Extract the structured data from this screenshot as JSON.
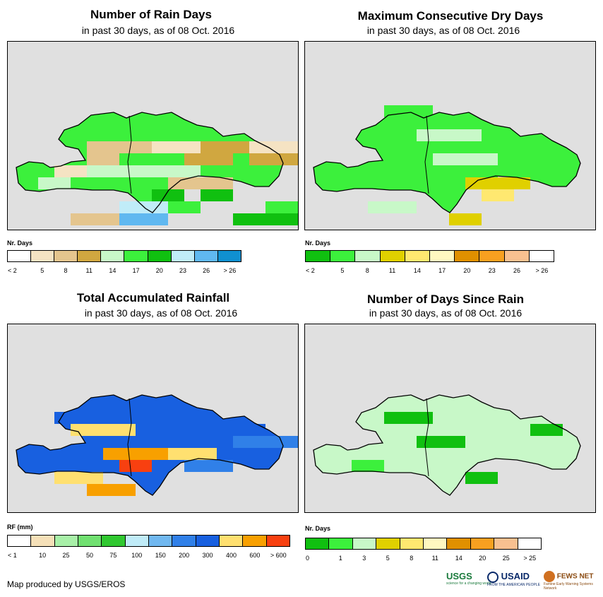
{
  "panels": {
    "rain_days": {
      "title": "Number of Rain Days",
      "subtitle": "in past 30 days, as of 08 Oct. 2016",
      "legend_title": "Nr. Days",
      "legend_labels": [
        "< 2",
        "5",
        "8",
        "11",
        "14",
        "17",
        "20",
        "23",
        "26",
        "> 26"
      ],
      "legend_colors": [
        "#ffffff",
        "#f5e3c3",
        "#e4c58e",
        "#d0a740",
        "#c8f8c8",
        "#3cf03c",
        "#10c010",
        "#c0ecf8",
        "#60b8f0",
        "#1090d0"
      ]
    },
    "dry_days": {
      "title": "Maximum Consecutive Dry Days",
      "subtitle": "in past 30 days, as of 08 Oct. 2016",
      "legend_title": "Nr. Days",
      "legend_labels": [
        "< 2",
        "5",
        "8",
        "11",
        "14",
        "17",
        "20",
        "23",
        "26",
        "> 26"
      ],
      "legend_colors": [
        "#10c010",
        "#3cf03c",
        "#c8f8c8",
        "#e0d000",
        "#ffe870",
        "#fff8c0",
        "#e09000",
        "#f8a020",
        "#f8c090",
        "#ffffff"
      ]
    },
    "rainfall": {
      "title": "Total Accumulated Rainfall",
      "subtitle": "in past 30 days, as of 08 Oct. 2016",
      "legend_title": "RF (mm)",
      "legend_labels": [
        "< 1",
        "10",
        "25",
        "50",
        "75",
        "100",
        "150",
        "200",
        "300",
        "400",
        "600",
        "> 600"
      ],
      "legend_colors": [
        "#ffffff",
        "#f5e0b8",
        "#a8f0a8",
        "#70e070",
        "#30c830",
        "#c0ecf8",
        "#70b8f0",
        "#3080e8",
        "#1860e0",
        "#ffe070",
        "#f8a000",
        "#f84010"
      ]
    },
    "days_since_rain": {
      "title": "Number of Days Since Rain",
      "subtitle": "in past 30 days, as of 08 Oct. 2016",
      "legend_title": "Nr. Days",
      "legend_labels": [
        "0",
        "1",
        "3",
        "5",
        "8",
        "11",
        "14",
        "20",
        "25",
        "> 25"
      ],
      "legend_colors": [
        "#10c010",
        "#3cf03c",
        "#c8f8c8",
        "#e0d000",
        "#ffe870",
        "#fff8c0",
        "#e09000",
        "#f8a020",
        "#f8c090",
        "#ffffff"
      ]
    }
  },
  "credit": "Map produced by USGS/EROS",
  "logos": {
    "usgs": "USGS",
    "usgs_tagline": "science for a changing world",
    "usaid": "USAID",
    "usaid_tagline": "FROM THE AMERICAN PEOPLE",
    "fews": "FEWS NET",
    "fews_tagline": "Famine Early Warning Systems Network"
  },
  "chart_data": [
    {
      "type": "heatmap",
      "title": "Number of Rain Days",
      "subtitle": "in past 30 days, as of 08 Oct. 2016",
      "legend_title": "Nr. Days",
      "legend": [
        "< 2",
        "5",
        "8",
        "11",
        "14",
        "17",
        "20",
        "23",
        "26",
        "> 26"
      ]
    },
    {
      "type": "heatmap",
      "title": "Maximum Consecutive Dry Days",
      "subtitle": "in past 30 days, as of 08 Oct. 2016",
      "legend_title": "Nr. Days",
      "legend": [
        "< 2",
        "5",
        "8",
        "11",
        "14",
        "17",
        "20",
        "23",
        "26",
        "> 26"
      ]
    },
    {
      "type": "heatmap",
      "title": "Total Accumulated Rainfall",
      "subtitle": "in past 30 days, as of 08 Oct. 2016",
      "legend_title": "RF (mm)",
      "legend": [
        "< 1",
        "10",
        "25",
        "50",
        "75",
        "100",
        "150",
        "200",
        "300",
        "400",
        "600",
        "> 600"
      ]
    },
    {
      "type": "heatmap",
      "title": "Number of Days Since Rain",
      "subtitle": "in past 30 days, as of 08 Oct. 2016",
      "legend_title": "Nr. Days",
      "legend": [
        "0",
        "1",
        "3",
        "5",
        "8",
        "11",
        "14",
        "20",
        "25",
        "> 25"
      ]
    }
  ]
}
